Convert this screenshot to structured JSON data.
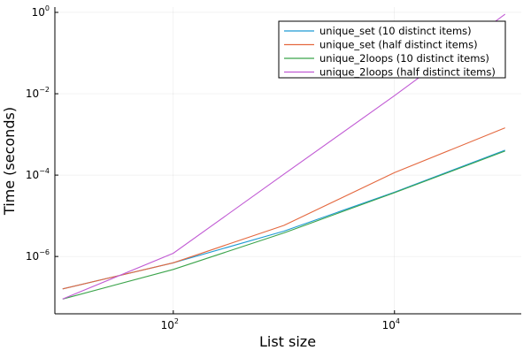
{
  "chart_data": {
    "type": "line",
    "xlabel": "List size",
    "ylabel": "Time (seconds)",
    "xscale": "log",
    "yscale": "log",
    "xlim": [
      8.5,
      140000
    ],
    "ylim": [
      3.9e-08,
      1.35
    ],
    "grid": true,
    "legend_position": "top-right",
    "x_ticks": [
      {
        "value": 100,
        "base": "10",
        "exp": "2"
      },
      {
        "value": 10000,
        "base": "10",
        "exp": "4"
      }
    ],
    "y_ticks": [
      {
        "value": 1e-06,
        "base": "10",
        "exp": "−6"
      },
      {
        "value": 0.0001,
        "base": "10",
        "exp": "−4"
      },
      {
        "value": 0.01,
        "base": "10",
        "exp": "−2"
      },
      {
        "value": 1,
        "base": "10",
        "exp": "0"
      }
    ],
    "x": [
      10,
      100,
      1000,
      10000,
      100000
    ],
    "series": [
      {
        "name": "unique_set (10 distinct items)",
        "color": "#1f9ad3",
        "values": [
          1.6e-07,
          7e-07,
          4.2e-06,
          3.8e-05,
          0.00041
        ]
      },
      {
        "name": "unique_set (half distinct items)",
        "color": "#e4683f",
        "values": [
          1.6e-07,
          7e-07,
          5.8e-06,
          0.000115,
          0.00145
        ]
      },
      {
        "name": "unique_2loops (10 distinct items)",
        "color": "#3ba44b",
        "values": [
          9e-08,
          4.8e-07,
          3.8e-06,
          3.7e-05,
          0.00039
        ]
      },
      {
        "name": "unique_2loops (half distinct items)",
        "color": "#c15bd4",
        "values": [
          9e-08,
          1.2e-06,
          0.000105,
          0.009,
          0.9
        ]
      }
    ]
  }
}
